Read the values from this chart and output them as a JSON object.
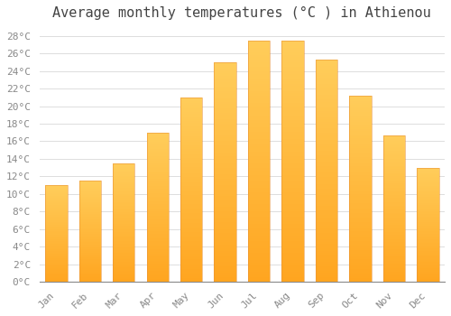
{
  "title": "Average monthly temperatures (°C ) in Athienou",
  "months": [
    "Jan",
    "Feb",
    "Mar",
    "Apr",
    "May",
    "Jun",
    "Jul",
    "Aug",
    "Sep",
    "Oct",
    "Nov",
    "Dec"
  ],
  "temperatures": [
    11.0,
    11.5,
    13.5,
    17.0,
    21.0,
    25.0,
    27.5,
    27.5,
    25.3,
    21.2,
    16.7,
    13.0
  ],
  "bar_color_bottom": "#FFA520",
  "bar_color_top": "#FFCD5B",
  "background_color": "#FFFFFF",
  "grid_color": "#DDDDDD",
  "ylim": [
    0,
    29
  ],
  "ytick_step": 2,
  "title_fontsize": 11,
  "tick_fontsize": 8,
  "font_family": "monospace",
  "title_color": "#444444",
  "tick_color": "#888888"
}
